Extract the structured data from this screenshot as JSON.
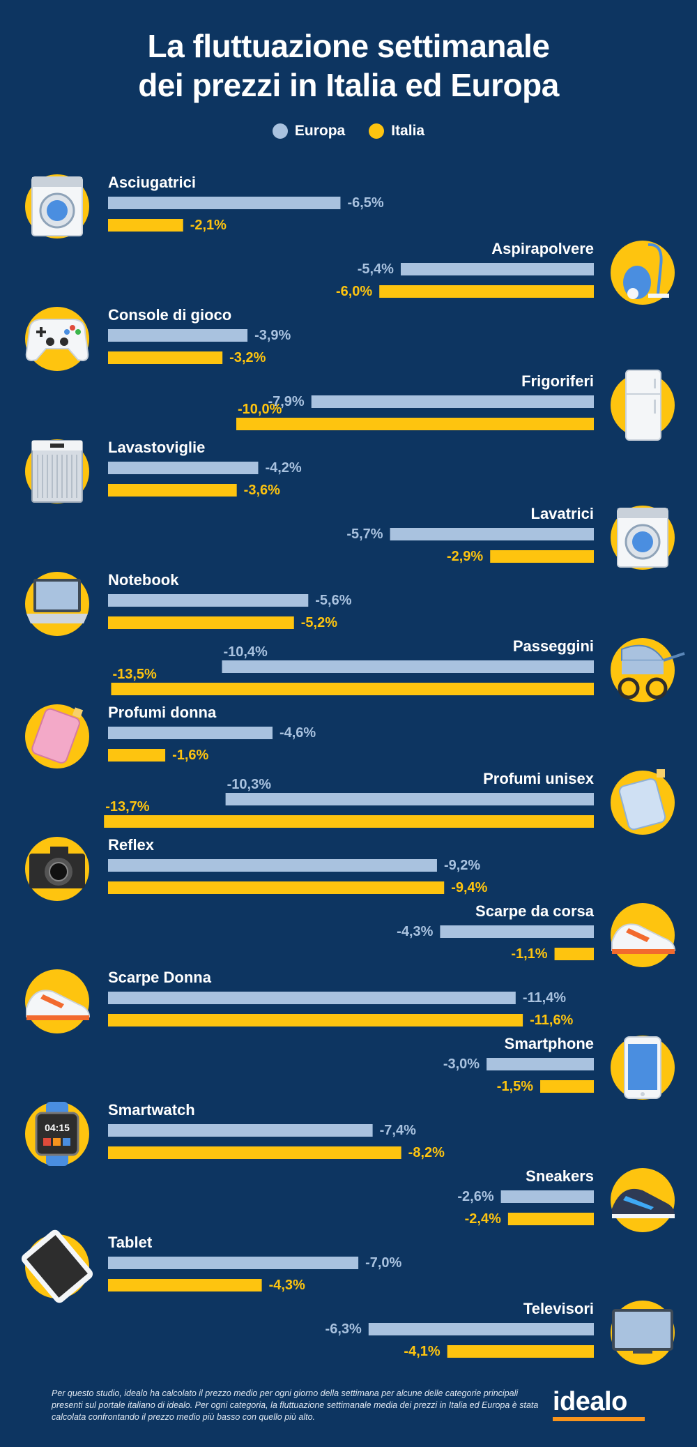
{
  "title_lines": [
    "La fluttuazione settimanale",
    "dei prezzi in Italia ed Europa"
  ],
  "colors": {
    "background": "#0d3561",
    "europa": "#a9c2df",
    "italia": "#fec40f",
    "icon_circle": "#fec40f"
  },
  "chart_data": {
    "type": "bar",
    "orientation": "horizontal",
    "legend_placement": "top-center",
    "grid": false,
    "xlim": [
      0,
      14
    ],
    "series": [
      {
        "name": "Europa",
        "color": "#a9c2df"
      },
      {
        "name": "Italia",
        "color": "#fec40f"
      }
    ],
    "categories": [
      {
        "label": "Asciugatrici",
        "side": "left",
        "icon": "dryer-icon",
        "europa": -6.5,
        "italia": -2.1,
        "europa_label": "-6,5%",
        "italia_label": "-2,1%"
      },
      {
        "label": "Aspirapolvere",
        "side": "right",
        "icon": "vacuum-cleaner-icon",
        "europa": -5.4,
        "italia": -6.0,
        "europa_label": "-5,4%",
        "italia_label": "-6,0%"
      },
      {
        "label": "Console di gioco",
        "side": "left",
        "icon": "gamepad-icon",
        "europa": -3.9,
        "italia": -3.2,
        "europa_label": "-3,9%",
        "italia_label": "-3,2%"
      },
      {
        "label": "Frigoriferi",
        "side": "right",
        "icon": "fridge-icon",
        "europa": -7.9,
        "italia": -10.0,
        "europa_label": "-7,9%",
        "italia_label": "-10,0%"
      },
      {
        "label": "Lavastoviglie",
        "side": "left",
        "icon": "dishwasher-icon",
        "europa": -4.2,
        "italia": -3.6,
        "europa_label": "-4,2%",
        "italia_label": "-3,6%"
      },
      {
        "label": "Lavatrici",
        "side": "right",
        "icon": "washing-machine-icon",
        "europa": -5.7,
        "italia": -2.9,
        "europa_label": "-5,7%",
        "italia_label": "-2,9%"
      },
      {
        "label": "Notebook",
        "side": "left",
        "icon": "laptop-icon",
        "europa": -5.6,
        "italia": -5.2,
        "europa_label": "-5,6%",
        "italia_label": "-5,2%"
      },
      {
        "label": "Passeggini",
        "side": "right",
        "icon": "stroller-icon",
        "europa": -10.4,
        "italia": -13.5,
        "europa_label": "-10,4%",
        "italia_label": "-13,5%"
      },
      {
        "label": "Profumi donna",
        "side": "left",
        "icon": "perfume-pink-icon",
        "europa": -4.6,
        "italia": -1.6,
        "europa_label": "-4,6%",
        "italia_label": "-1,6%"
      },
      {
        "label": "Profumi unisex",
        "side": "right",
        "icon": "perfume-blue-icon",
        "europa": -10.3,
        "italia": -13.7,
        "europa_label": "-10,3%",
        "italia_label": "-13,7%"
      },
      {
        "label": "Reflex",
        "side": "left",
        "icon": "camera-icon",
        "europa": -9.2,
        "italia": -9.4,
        "europa_label": "-9,2%",
        "italia_label": "-9,4%"
      },
      {
        "label": "Scarpe da corsa",
        "side": "right",
        "icon": "running-shoe-icon",
        "europa": -4.3,
        "italia": -1.1,
        "europa_label": "-4,3%",
        "italia_label": "-1,1%"
      },
      {
        "label": "Scarpe Donna",
        "side": "left",
        "icon": "womens-shoe-icon",
        "europa": -11.4,
        "italia": -11.6,
        "europa_label": "-11,4%",
        "italia_label": "-11,6%"
      },
      {
        "label": "Smartphone",
        "side": "right",
        "icon": "smartphone-icon",
        "europa": -3.0,
        "italia": -1.5,
        "europa_label": "-3,0%",
        "italia_label": "-1,5%"
      },
      {
        "label": "Smartwatch",
        "side": "left",
        "icon": "smartwatch-icon",
        "icon_text": "04:15",
        "europa": -7.4,
        "italia": -8.2,
        "europa_label": "-7,4%",
        "italia_label": "-8,2%"
      },
      {
        "label": "Sneakers",
        "side": "right",
        "icon": "sneaker-icon",
        "europa": -2.6,
        "italia": -2.4,
        "europa_label": "-2,6%",
        "italia_label": "-2,4%"
      },
      {
        "label": "Tablet",
        "side": "left",
        "icon": "tablet-icon",
        "europa": -7.0,
        "italia": -4.3,
        "europa_label": "-7,0%",
        "italia_label": "-4,3%"
      },
      {
        "label": "Televisori",
        "side": "right",
        "icon": "tv-icon",
        "europa": -6.3,
        "italia": -4.1,
        "europa_label": "-6,3%",
        "italia_label": "-4,1%"
      }
    ]
  },
  "footnote": "Per questo studio, idealo ha calcolato il prezzo medio per ogni giorno della settimana per alcune delle categorie principali presenti sul portale italiano di idealo. Per ogni categoria, la fluttuazione settimanale media dei prezzi in Italia ed Europa è stata calcolata confrontando il prezzo medio più basso con quello più alto.",
  "logo_text": "idealo"
}
